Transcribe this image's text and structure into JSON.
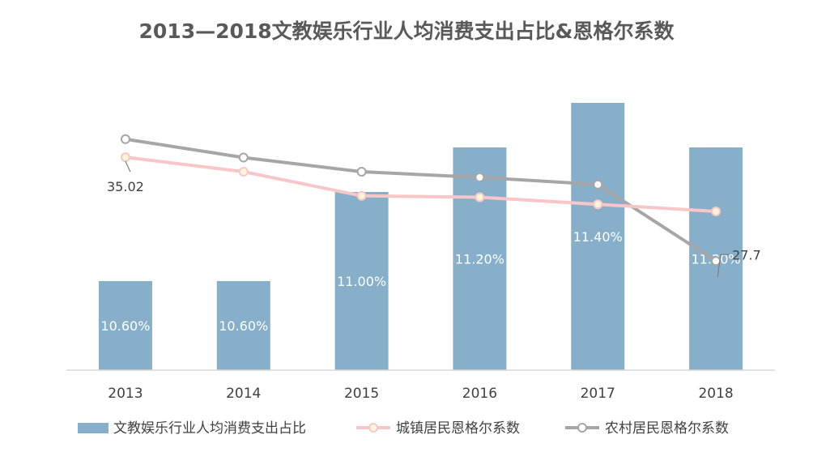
{
  "colors": {
    "bar": "#87afc9",
    "urban_line": "#f8c6c9",
    "urban_marker_fill": "#fff5d6",
    "rural_line": "#a6a6a6",
    "rural_marker_fill": "#ffffff",
    "axis": "#d9d9d9",
    "text": "#404040",
    "title": "#595959"
  },
  "chart_data": {
    "type": "bar",
    "title": "2013—2018文教娱乐行业人均消费支出占比&恩格尔系数",
    "categories": [
      "2013",
      "2014",
      "2015",
      "2016",
      "2017",
      "2018"
    ],
    "grid": false,
    "legend_position": "bottom",
    "series": [
      {
        "name": "文教娱乐行业人均消费支出占比",
        "type": "bar",
        "axis": "primary",
        "values": [
          10.6,
          10.6,
          11.0,
          11.2,
          11.4,
          11.2
        ],
        "labels": [
          "10.60%",
          "10.60%",
          "11.00%",
          "11.20%",
          "11.40%",
          "11.20%"
        ],
        "ylim": [
          10.2,
          11.6
        ]
      },
      {
        "name": "城镇居民恩格尔系数",
        "type": "line",
        "axis": "secondary",
        "values": [
          35.02,
          34.0,
          32.3,
          32.2,
          31.7,
          31.2
        ]
      },
      {
        "name": "农村居民恩格尔系数",
        "type": "line",
        "axis": "secondary",
        "values": [
          36.3,
          35.0,
          34.0,
          33.6,
          33.1,
          27.7
        ]
      }
    ],
    "annotations": [
      "35.02",
      "27.7"
    ],
    "secondary_ylim": [
      20,
      42
    ]
  }
}
